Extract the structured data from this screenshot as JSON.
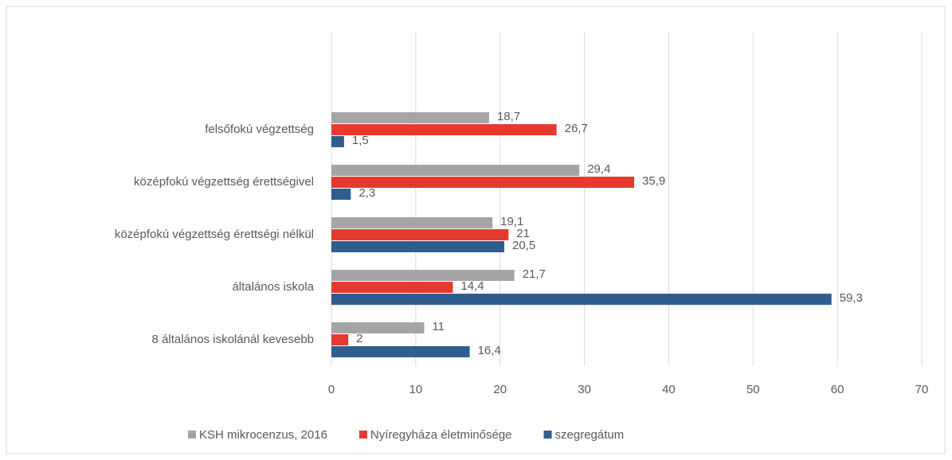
{
  "chart_data": {
    "type": "bar",
    "orientation": "horizontal",
    "categories": [
      "felsőfokú végzettség",
      "középfokú végzettség érettségivel",
      "középfokú végzettség érettségi nélkül",
      "általános iskola",
      "8 általános iskolánál kevesebb"
    ],
    "series": [
      {
        "name": "KSH mikrocenzus, 2016",
        "color": "#a5a5a5",
        "values": [
          18.7,
          29.4,
          19.1,
          21.7,
          11
        ],
        "value_labels": [
          "18,7",
          "29,4",
          "19,1",
          "21,7",
          null
        ]
      },
      {
        "name": "Nyíregyháza életminősége",
        "color": "#e53a2f",
        "values": [
          26.7,
          35.9,
          21,
          14.4,
          2
        ],
        "value_labels": [
          "26,7",
          "35,9",
          null,
          "14,4",
          null
        ]
      },
      {
        "name": "szegregátum",
        "color": "#2f5d8f",
        "values": [
          1.5,
          2.3,
          20.5,
          59.3,
          16.4
        ],
        "value_labels": [
          "1,5",
          "2,3",
          "20,5",
          "59,3",
          "16,4"
        ]
      }
    ],
    "xlim": [
      0,
      70
    ],
    "xticks": [
      0,
      10,
      20,
      30,
      40,
      50,
      60,
      70
    ],
    "grid": true,
    "legend": "bottom"
  }
}
